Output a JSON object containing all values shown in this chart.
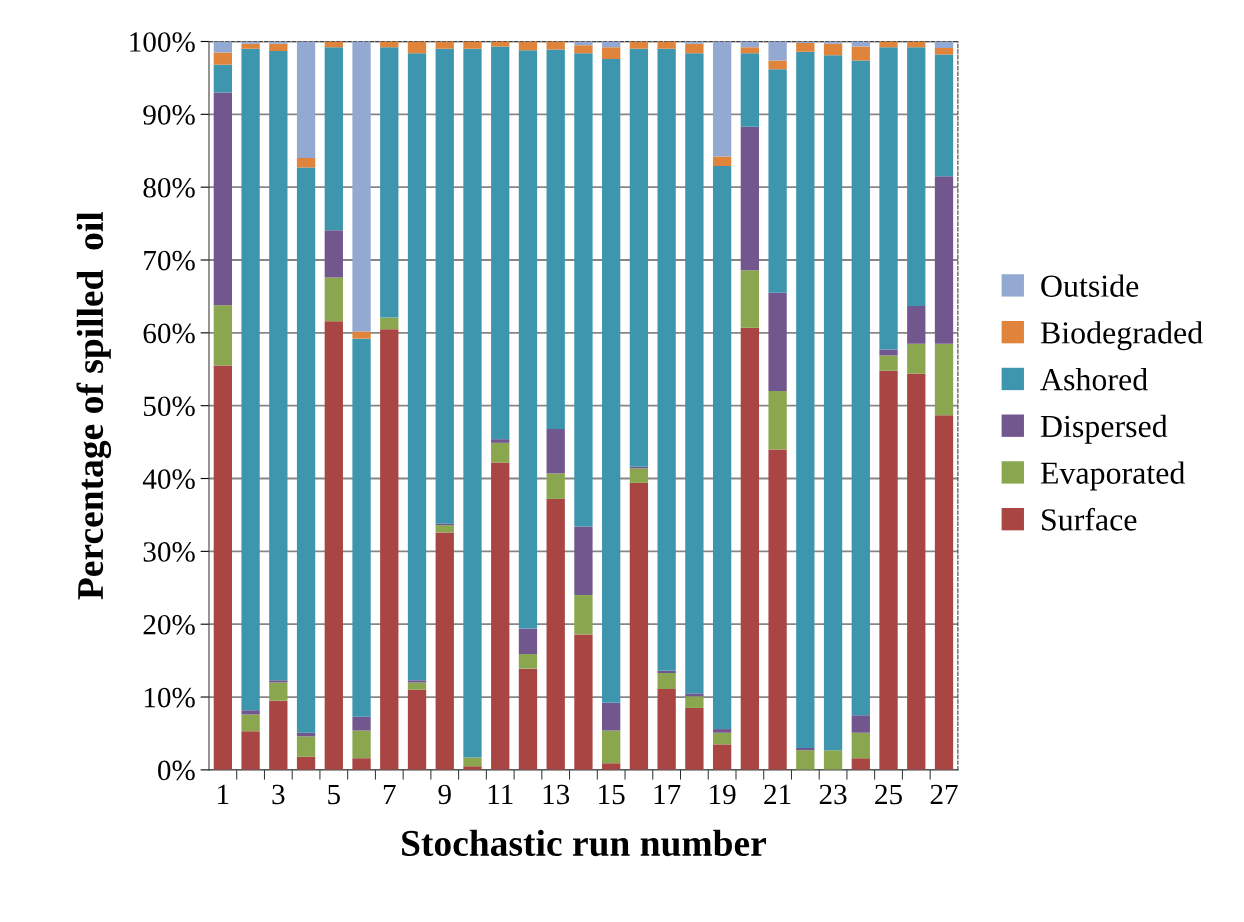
{
  "chart_data": {
    "type": "bar",
    "stacked": true,
    "xlabel": "Stochastic run number",
    "ylabel": "Percentage of spilled  oil",
    "categories": [
      "1",
      null,
      "3",
      null,
      "5",
      null,
      "7",
      null,
      "9",
      null,
      "11",
      null,
      "13",
      null,
      "15",
      null,
      "17",
      null,
      "19",
      null,
      "21",
      null,
      "23",
      null,
      "25",
      null,
      "27"
    ],
    "series": [
      {
        "name": "Surface",
        "color": "#a94543",
        "values": [
          55.5,
          5.3,
          9.5,
          1.8,
          61.6,
          1.6,
          60.5,
          11,
          32.6,
          0.5,
          42.2,
          13.9,
          37.2,
          18.6,
          0.9,
          39.4,
          11.1,
          8.5,
          3.5,
          60.7,
          44,
          0,
          0,
          1.6,
          54.8,
          54.4,
          48.7
        ]
      },
      {
        "name": "Evaporated",
        "color": "#8aa64f",
        "values": [
          8.3,
          2.3,
          2.5,
          2.8,
          6.0,
          3.8,
          1.6,
          1.0,
          1.0,
          1.2,
          2.7,
          2.0,
          3.5,
          5.4,
          4.5,
          2.0,
          2.2,
          1.6,
          1.6,
          7.9,
          8.0,
          2.7,
          2.7,
          3.5,
          2.1,
          4.1,
          9.8
        ]
      },
      {
        "name": "Dispersed",
        "color": "#72578f",
        "values": [
          29.2,
          0.6,
          0.3,
          0.5,
          6.5,
          1.9,
          0,
          0.3,
          0.2,
          0,
          0.5,
          3.5,
          6.1,
          9.4,
          3.8,
          0.2,
          0.3,
          0.4,
          0.5,
          19.7,
          13.5,
          0.3,
          0,
          2.4,
          0.8,
          5.2,
          23
        ]
      },
      {
        "name": "Ashored",
        "color": "#3d96ae",
        "values": [
          3.8,
          90.8,
          86.4,
          77.6,
          25.1,
          51.9,
          37.1,
          86.1,
          65.2,
          97.3,
          53.9,
          79.4,
          52.1,
          65.0,
          88.4,
          57.4,
          85.4,
          87.9,
          77.3,
          10.1,
          30.7,
          95.6,
          95.4,
          89.9,
          41.5,
          35.5,
          16.7
        ]
      },
      {
        "name": "Biodegraded",
        "color": "#e0843c",
        "values": [
          1.7,
          0.7,
          1.0,
          1.3,
          0.8,
          1.0,
          0.8,
          1.6,
          1.0,
          1.0,
          0.7,
          1.2,
          1.1,
          1.1,
          1.6,
          1.0,
          1.0,
          1.3,
          1.3,
          0.8,
          1.2,
          1.2,
          1.6,
          1.9,
          0.8,
          0.8,
          0.9
        ]
      },
      {
        "name": "Outside",
        "color": "#94a9d2",
        "values": [
          1.5,
          0.3,
          0.3,
          16,
          0,
          39.8,
          0,
          0,
          0,
          0,
          0,
          0,
          0,
          0.5,
          0.8,
          0,
          0,
          0.3,
          15.8,
          0.8,
          2.6,
          0.2,
          0.3,
          0.7,
          0,
          0,
          0.9
        ]
      }
    ],
    "ylim": [
      0,
      100
    ],
    "yticks": [
      {
        "value": 0,
        "label": "0%"
      },
      {
        "value": 10,
        "label": "10%"
      },
      {
        "value": 20,
        "label": "20%"
      },
      {
        "value": 30,
        "label": "30%"
      },
      {
        "value": 40,
        "label": "40%"
      },
      {
        "value": 50,
        "label": "50%"
      },
      {
        "value": 60,
        "label": "60%"
      },
      {
        "value": 70,
        "label": "70%"
      },
      {
        "value": 80,
        "label": "80%"
      },
      {
        "value": 90,
        "label": "90%"
      },
      {
        "value": 100,
        "label": "100%"
      }
    ],
    "grid": "y",
    "legend": "right"
  }
}
